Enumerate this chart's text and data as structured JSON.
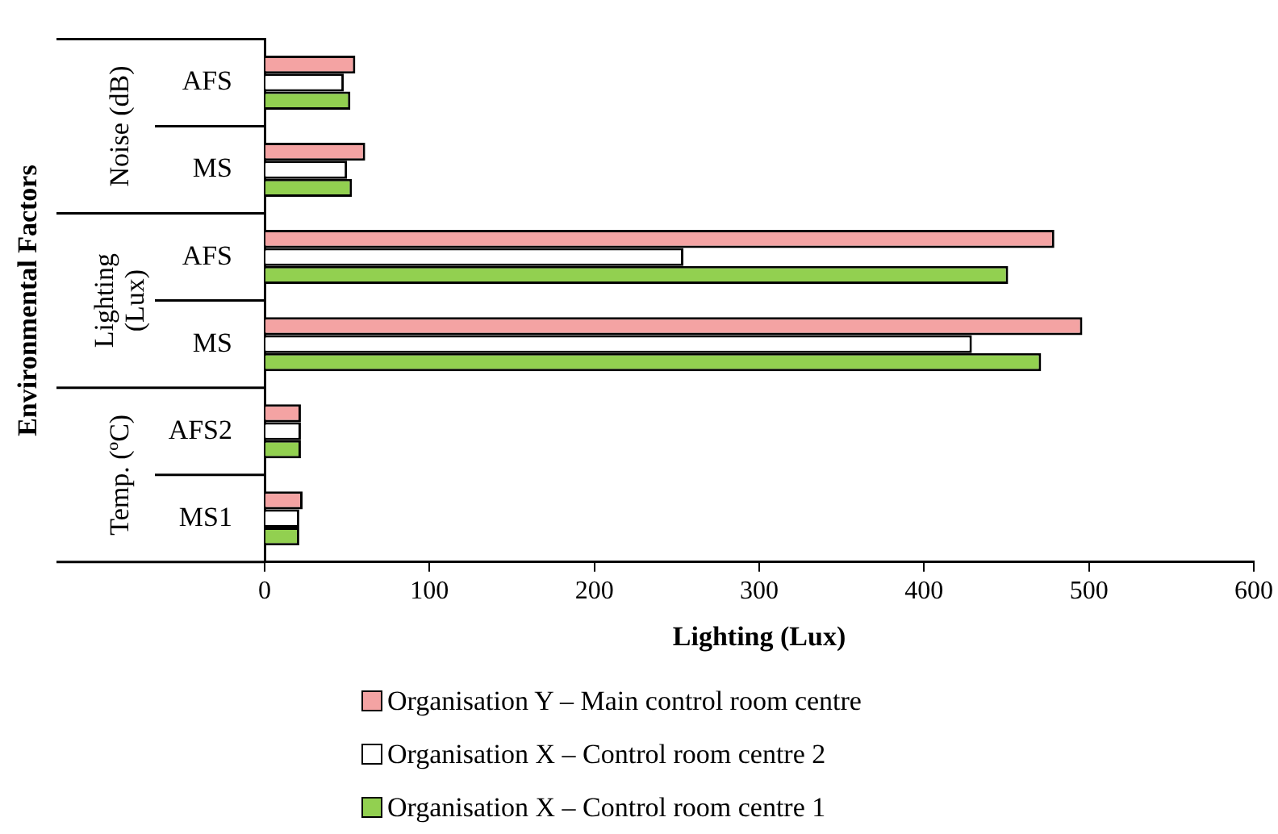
{
  "chart_data": {
    "type": "bar",
    "orientation": "horizontal",
    "xlabel": "Lighting (Lux)",
    "ylabel": "Environmental Factors",
    "categories": [
      "AFS",
      "MS",
      "AFS",
      "MS",
      "AFS2",
      "MS1"
    ],
    "annotations": [
      "Noise (dB)",
      "Lighting (Lux)",
      "Temp. (ºC)"
    ],
    "series": [
      {
        "name": "Organisation Y – Main control room centre",
        "color": "#f4a3a3",
        "values": [
          55,
          61,
          479,
          496,
          22,
          23
        ]
      },
      {
        "name": "Organisation X – Control room centre 2",
        "color": "#ffffff",
        "values": [
          48,
          50,
          254,
          429,
          22,
          21
        ]
      },
      {
        "name": "Organisation X – Control room centre 1",
        "color": "#92d050",
        "values": [
          52,
          53,
          451,
          471,
          22,
          21
        ]
      }
    ],
    "xlim": [
      0,
      600
    ],
    "xticks": [
      0,
      100,
      200,
      300,
      400,
      500,
      600
    ],
    "grid": false,
    "legend": "bottom"
  }
}
